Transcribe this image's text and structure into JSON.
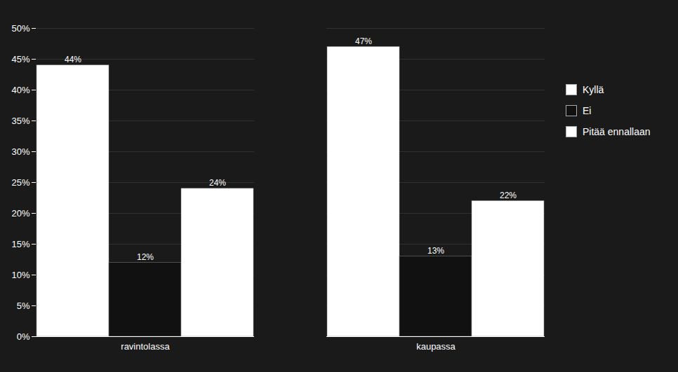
{
  "chart_data": {
    "type": "bar",
    "categories": [
      "ravintolassa",
      "kaupassa"
    ],
    "series": [
      {
        "name": "Kyllä",
        "color": "#ffffff",
        "values": [
          44,
          47
        ],
        "value_labels": [
          "44%",
          "47%"
        ]
      },
      {
        "name": "Ei",
        "color": "#111111",
        "values": [
          12,
          13
        ],
        "value_labels": [
          "12%",
          "13%"
        ]
      },
      {
        "name": "Pitää ennallaan",
        "color": "#ffffff",
        "values": [
          24,
          22
        ],
        "value_labels": [
          "24%",
          "22%"
        ]
      }
    ],
    "ylim": [
      0,
      50
    ],
    "yticks": [
      {
        "value": 0,
        "label": "0%"
      },
      {
        "value": 5,
        "label": "5%"
      },
      {
        "value": 10,
        "label": "10%"
      },
      {
        "value": 15,
        "label": "15%"
      },
      {
        "value": 20,
        "label": "20%"
      },
      {
        "value": 25,
        "label": "25%"
      },
      {
        "value": 30,
        "label": "30%"
      },
      {
        "value": 35,
        "label": "35%"
      },
      {
        "value": 40,
        "label": "40%"
      },
      {
        "value": 45,
        "label": "45%"
      },
      {
        "value": 50,
        "label": "50%"
      }
    ],
    "grid": true,
    "legend": "right",
    "data_labels": true
  }
}
